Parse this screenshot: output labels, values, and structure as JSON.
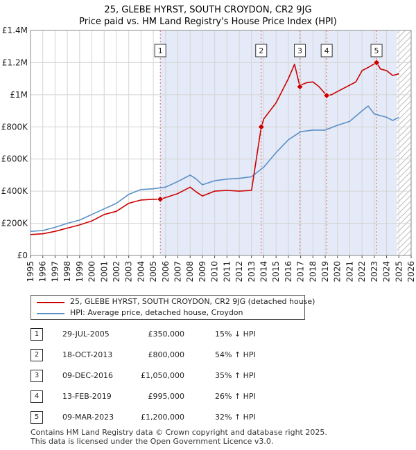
{
  "chart_data": {
    "type": "line",
    "title": "25, GLEBE HYRST, SOUTH CROYDON, CR2 9JG",
    "subtitle": "Price paid vs. HM Land Registry's House Price Index (HPI)",
    "xlim": [
      1995,
      2026
    ],
    "ylim": [
      0,
      1400000
    ],
    "y_ticks": [
      0,
      200000,
      400000,
      600000,
      800000,
      1000000,
      1200000,
      1400000
    ],
    "y_tick_labels": [
      "£0",
      "£200K",
      "£400K",
      "£600K",
      "£800K",
      "£1M",
      "£1.2M",
      "£1.4M"
    ],
    "x_ticks": [
      1995,
      1996,
      1997,
      1998,
      1999,
      2000,
      2001,
      2002,
      2003,
      2004,
      2005,
      2006,
      2007,
      2008,
      2009,
      2010,
      2011,
      2012,
      2013,
      2014,
      2015,
      2016,
      2017,
      2018,
      2019,
      2020,
      2021,
      2022,
      2023,
      2024,
      2025,
      2026
    ],
    "grid": true,
    "shaded_period": [
      2005.57,
      2024.85
    ],
    "hatched_from": 2024.85,
    "colors": {
      "property": "#cc0000",
      "hpi": "#5b8fc7",
      "shade": "#e4eaf7",
      "vline": "#e06060"
    },
    "series": [
      {
        "name": "25, GLEBE HYRST, SOUTH CROYDON, CR2 9JG (detached house)",
        "x": [
          1995,
          1996,
          1997,
          1998,
          1999,
          2000,
          2001,
          2002,
          2003,
          2004,
          2005,
          2005.57,
          2006,
          2007,
          2008,
          2008.5,
          2009,
          2010,
          2011,
          2012,
          2013,
          2013.79,
          2014,
          2015,
          2016,
          2016.5,
          2016.94,
          2017,
          2017.5,
          2018,
          2018.5,
          2019.12,
          2019.5,
          2020,
          2021,
          2021.5,
          2022,
          2022.5,
          2023.18,
          2023.5,
          2024,
          2024.5,
          2025
        ],
        "y": [
          130000,
          135000,
          150000,
          170000,
          190000,
          215000,
          255000,
          275000,
          325000,
          345000,
          350000,
          350000,
          360000,
          385000,
          425000,
          395000,
          370000,
          400000,
          405000,
          400000,
          405000,
          800000,
          850000,
          950000,
          1100000,
          1190000,
          1050000,
          1060000,
          1075000,
          1080000,
          1050000,
          995000,
          1000000,
          1020000,
          1060000,
          1080000,
          1150000,
          1170000,
          1200000,
          1160000,
          1150000,
          1120000,
          1130000
        ]
      },
      {
        "name": "HPI: Average price, detached house, Croydon",
        "x": [
          1995,
          1996,
          1997,
          1998,
          1999,
          2000,
          2001,
          2002,
          2003,
          2004,
          2005,
          2006,
          2007,
          2008,
          2008.5,
          2009,
          2010,
          2011,
          2012,
          2013,
          2014,
          2015,
          2016,
          2017,
          2018,
          2019,
          2020,
          2021,
          2022,
          2022.5,
          2023,
          2024,
          2024.5,
          2025
        ],
        "y": [
          150000,
          155000,
          175000,
          200000,
          220000,
          255000,
          290000,
          325000,
          380000,
          410000,
          415000,
          425000,
          460000,
          500000,
          475000,
          440000,
          465000,
          475000,
          480000,
          490000,
          550000,
          640000,
          720000,
          770000,
          780000,
          780000,
          810000,
          835000,
          900000,
          930000,
          880000,
          860000,
          840000,
          860000
        ]
      }
    ],
    "sales": [
      {
        "num": "1",
        "x": 2005.57,
        "y": 350000,
        "date": "29-JUL-2005",
        "price": "£350,000",
        "hpi": "15% ↓ HPI"
      },
      {
        "num": "2",
        "x": 2013.79,
        "y": 800000,
        "date": "18-OCT-2013",
        "price": "£800,000",
        "hpi": "54% ↑ HPI"
      },
      {
        "num": "3",
        "x": 2016.94,
        "y": 1050000,
        "date": "09-DEC-2016",
        "price": "£1,050,000",
        "hpi": "35% ↑ HPI"
      },
      {
        "num": "4",
        "x": 2019.12,
        "y": 995000,
        "date": "13-FEB-2019",
        "price": "£995,000",
        "hpi": "26% ↑ HPI"
      },
      {
        "num": "5",
        "x": 2023.18,
        "y": 1200000,
        "date": "09-MAR-2023",
        "price": "£1,200,000",
        "hpi": "32% ↑ HPI"
      }
    ]
  },
  "legend": {
    "property_label": "25, GLEBE HYRST, SOUTH CROYDON, CR2 9JG (detached house)",
    "hpi_label": "HPI: Average price, detached house, Croydon"
  },
  "footer": {
    "line1": "Contains HM Land Registry data © Crown copyright and database right 2025.",
    "line2": "This data is licensed under the Open Government Licence v3.0."
  }
}
